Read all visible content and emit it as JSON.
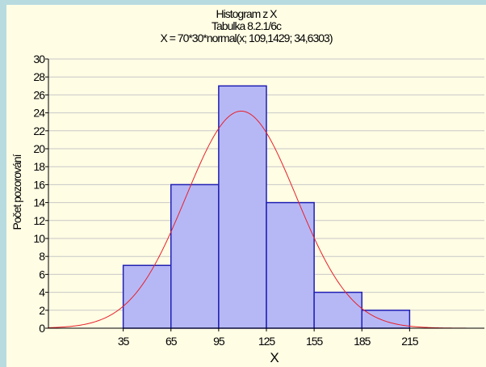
{
  "chart_data": {
    "type": "bar",
    "title": "Histogram z X",
    "subtitle": "Tabulka 8.2.1/6c",
    "fit_label": "X = 70*30*normal(x; 109,1429; 34,6303)",
    "xlabel": "X",
    "ylabel": "Počet pozorování",
    "x_ticks": [
      35,
      65,
      95,
      125,
      155,
      185,
      215
    ],
    "bins": [
      {
        "from": 35,
        "to": 65,
        "count": 7
      },
      {
        "from": 65,
        "to": 95,
        "count": 16
      },
      {
        "from": 95,
        "to": 125,
        "count": 27
      },
      {
        "from": 125,
        "to": 155,
        "count": 14
      },
      {
        "from": 155,
        "to": 185,
        "count": 4
      },
      {
        "from": 185,
        "to": 215,
        "count": 2
      }
    ],
    "fit_curve": {
      "type": "normal",
      "n": 70,
      "bin_width": 30,
      "mean": 109.1429,
      "sd": 34.6303,
      "color": "#e8202a"
    },
    "bar_fill": "#b6b8f6",
    "bar_stroke": "#1f1fb4",
    "ylim": [
      0,
      30
    ],
    "y_ticks": [
      0,
      2,
      4,
      6,
      8,
      10,
      12,
      14,
      16,
      18,
      20,
      22,
      24,
      26,
      28,
      30
    ],
    "grid": true,
    "legend": "none"
  }
}
